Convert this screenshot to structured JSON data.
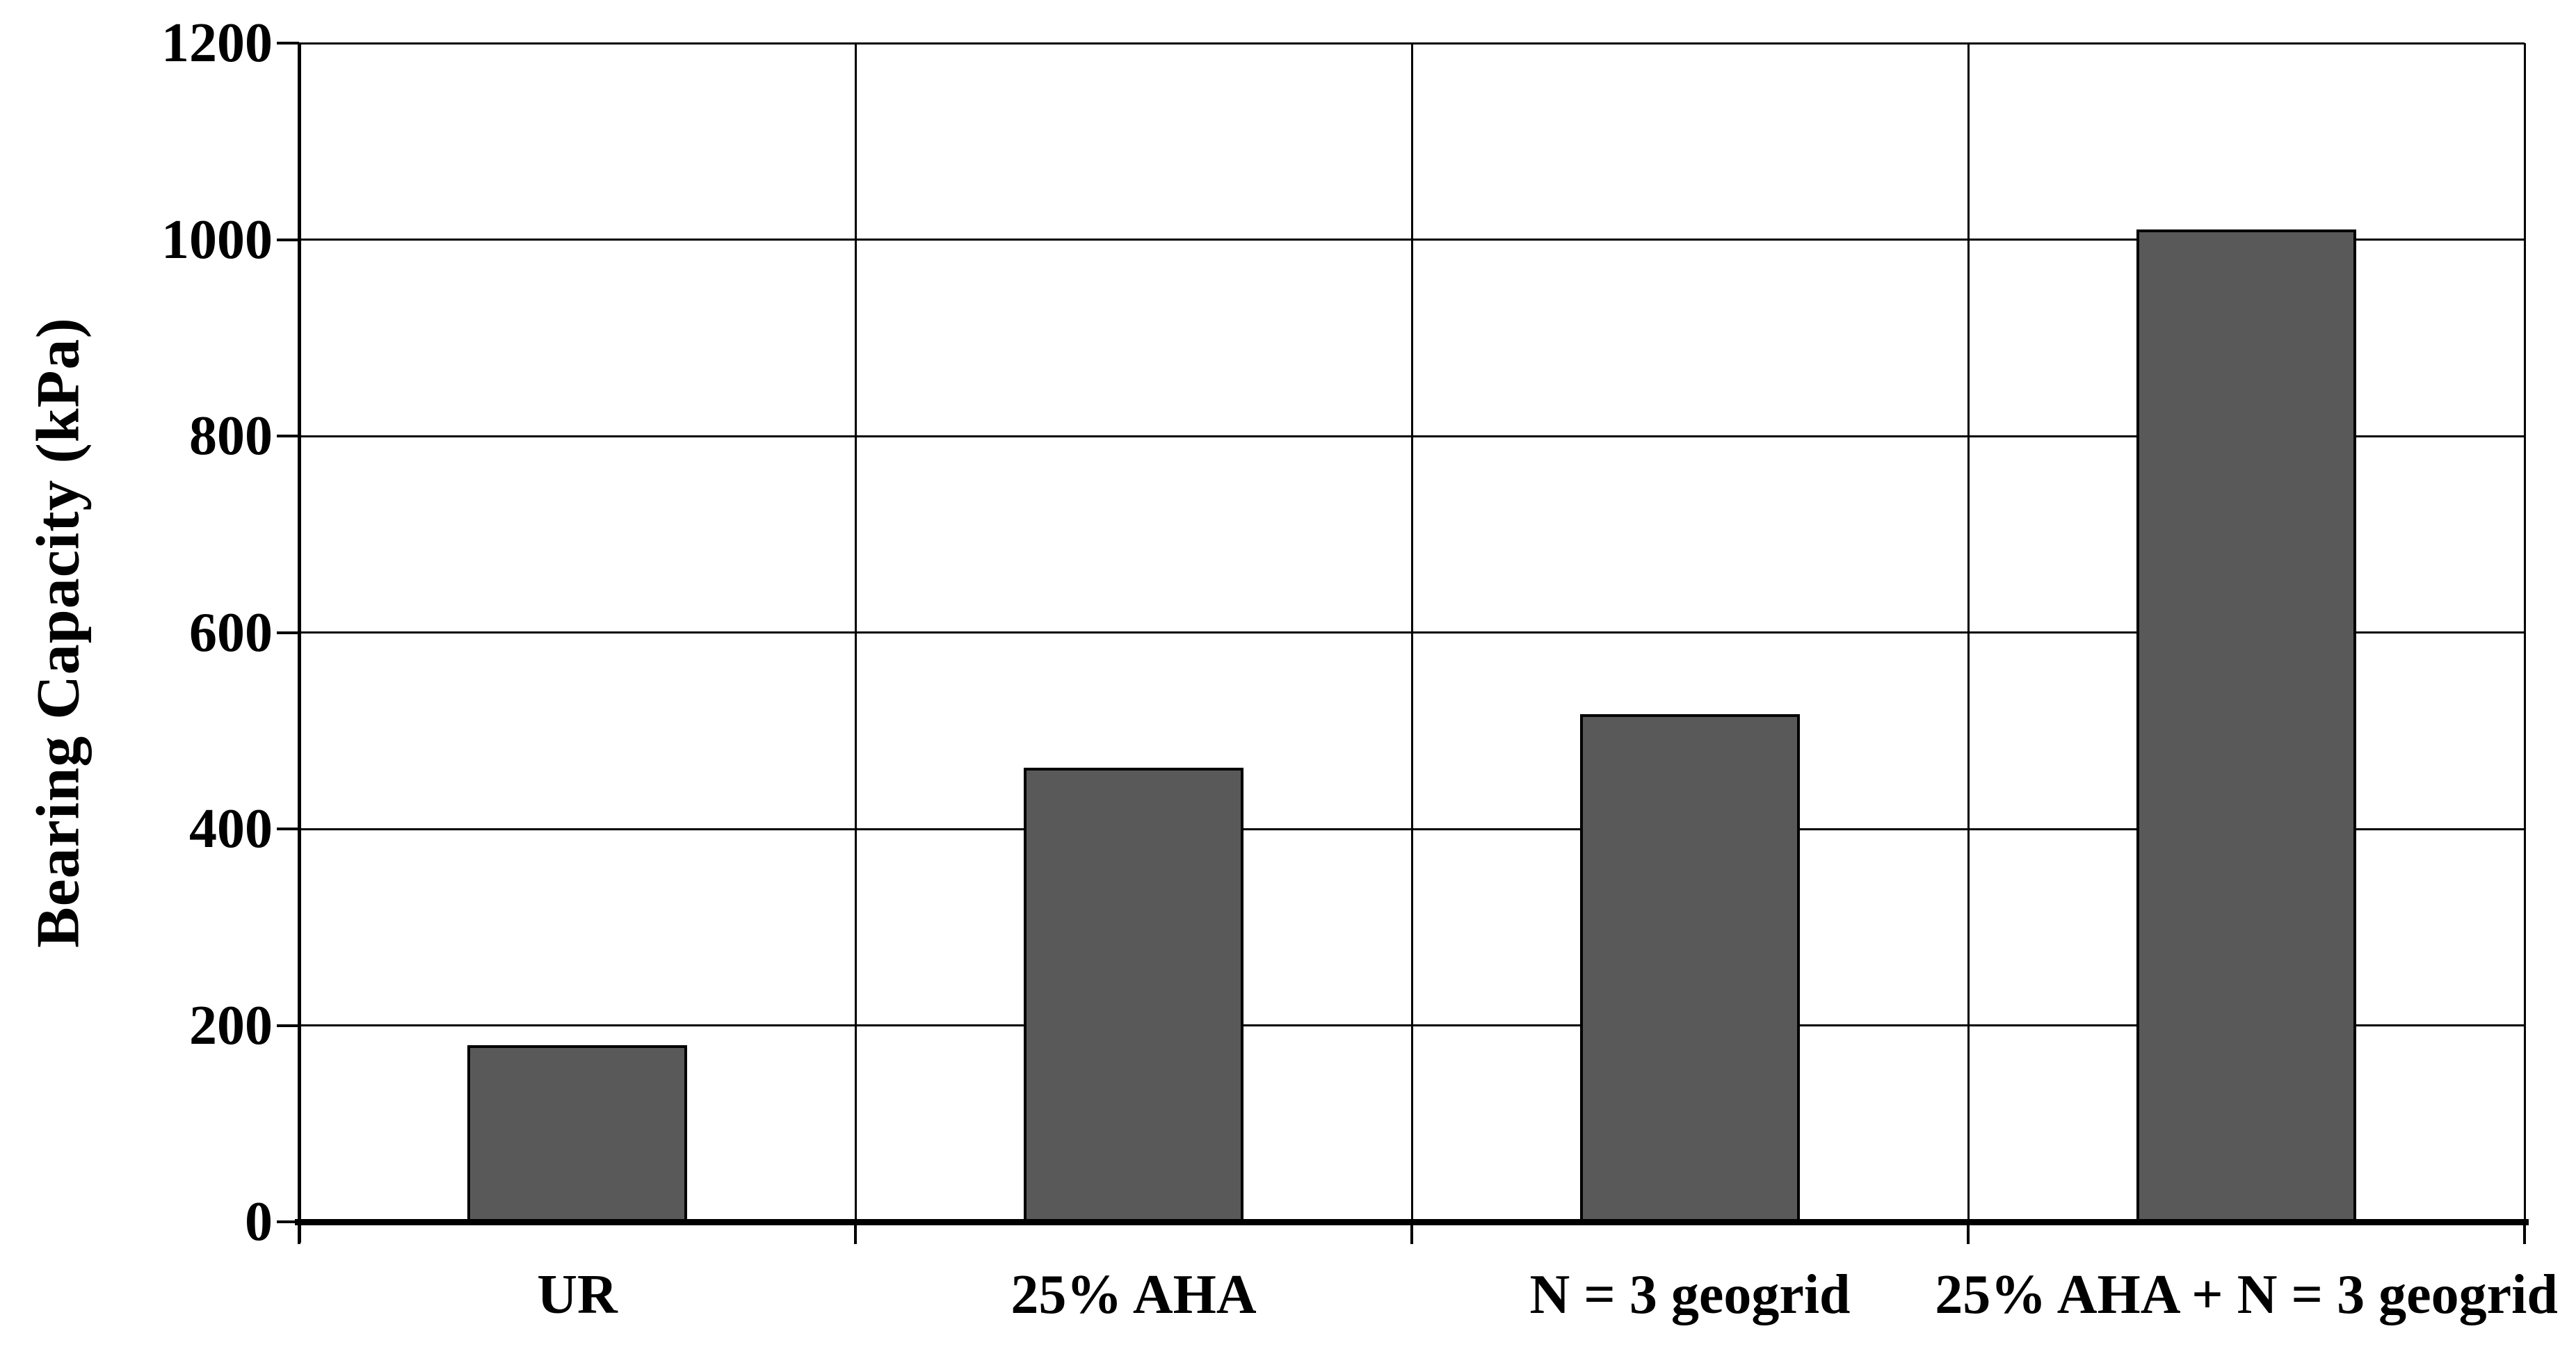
{
  "chart_data": {
    "type": "bar",
    "categories": [
      "UR",
      "25% AHA",
      "N = 3 geogrid",
      "25% AHA + N = 3 geogrid"
    ],
    "values": [
      180,
      462,
      517,
      1010
    ],
    "title": "",
    "xlabel": "",
    "ylabel": "Bearing Capacity (kPa)",
    "ylim": [
      0,
      1200
    ],
    "ytick_interval": 200,
    "ytick_labels": [
      "0",
      "200",
      "400",
      "600",
      "800",
      "1000",
      "1200"
    ],
    "grid": {
      "horizontal": true,
      "vertical_category_separators": true
    },
    "legend_position": "none",
    "colors": {
      "bar_fill": "#595959",
      "bar_border": "#000000",
      "axis": "#000000",
      "gridline": "#000000",
      "text": "#000000",
      "background": "#ffffff"
    }
  }
}
